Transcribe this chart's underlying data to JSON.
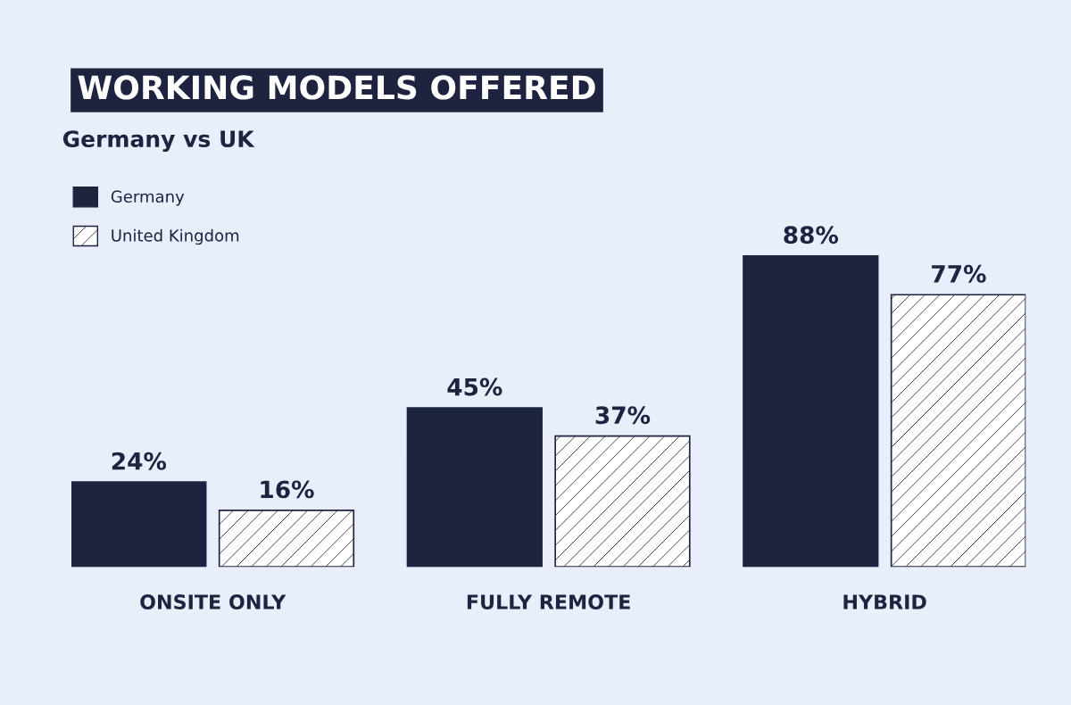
{
  "chart_data": {
    "type": "bar",
    "title": "WORKING MODELS OFFERED",
    "subtitle": "Germany vs UK",
    "categories": [
      "ONSITE ONLY",
      "FULLY REMOTE",
      "HYBRID"
    ],
    "series": [
      {
        "name": "Germany",
        "color": "#1e2440",
        "values": [
          24,
          45,
          88
        ],
        "value_labels": [
          "24%",
          "45%",
          "88%"
        ]
      },
      {
        "name": "United Kingdom",
        "color": "#1e2440",
        "values": [
          16,
          37,
          77
        ],
        "value_labels": [
          "16%",
          "37%",
          "77%"
        ]
      }
    ],
    "legend": "top left",
    "grid": false
  }
}
